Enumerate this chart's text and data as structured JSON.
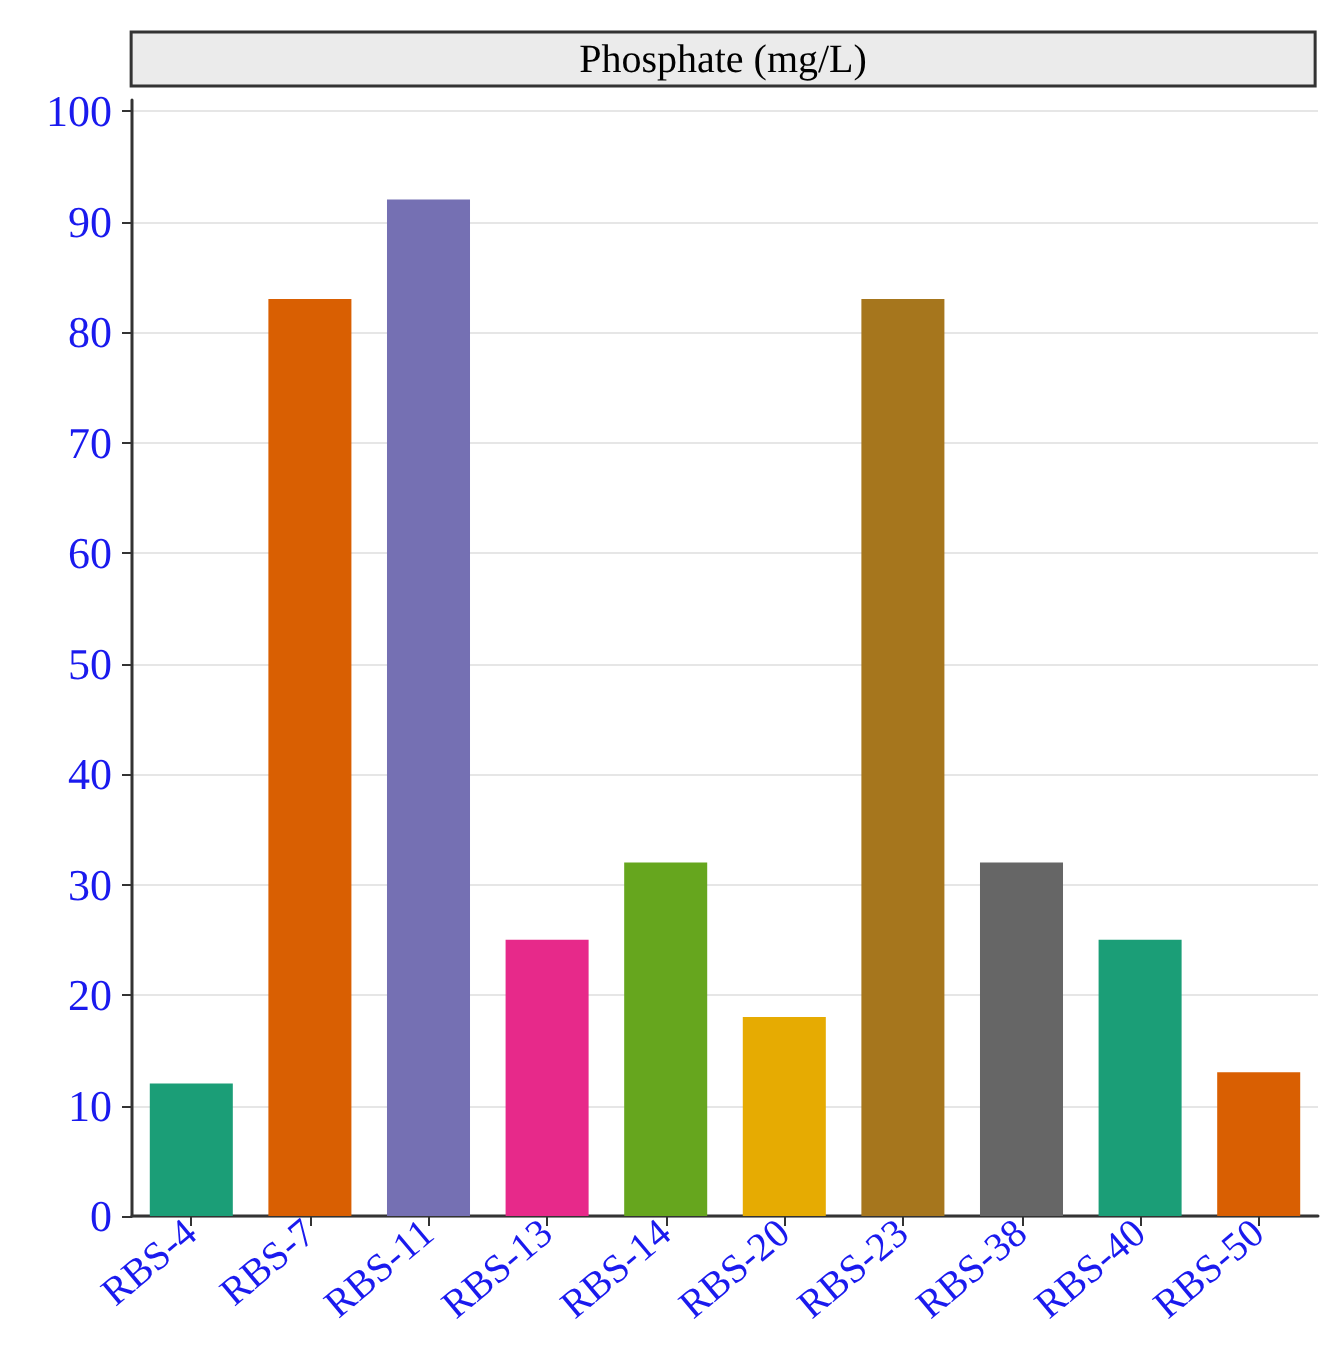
{
  "chart_data": {
    "type": "bar",
    "title": "Phosphate (mg/L)",
    "categories": [
      "RBS-4",
      "RBS-7",
      "RBS-11",
      "RBS-13",
      "RBS-14",
      "RBS-20",
      "RBS-23",
      "RBS-38",
      "RBS-40",
      "RBS-50"
    ],
    "values": [
      12,
      83,
      92,
      25,
      32,
      18,
      83,
      32,
      25,
      13
    ],
    "colors": [
      "#1b9e77",
      "#d95f02",
      "#7570b3",
      "#e7298a",
      "#66a61e",
      "#e6ab02",
      "#a6761d",
      "#666666",
      "#1b9e77",
      "#d95f02"
    ],
    "ylim": [
      0,
      101
    ],
    "yticks": [
      0,
      10,
      20,
      30,
      40,
      50,
      60,
      70,
      80,
      90,
      100
    ],
    "grid": "y"
  }
}
